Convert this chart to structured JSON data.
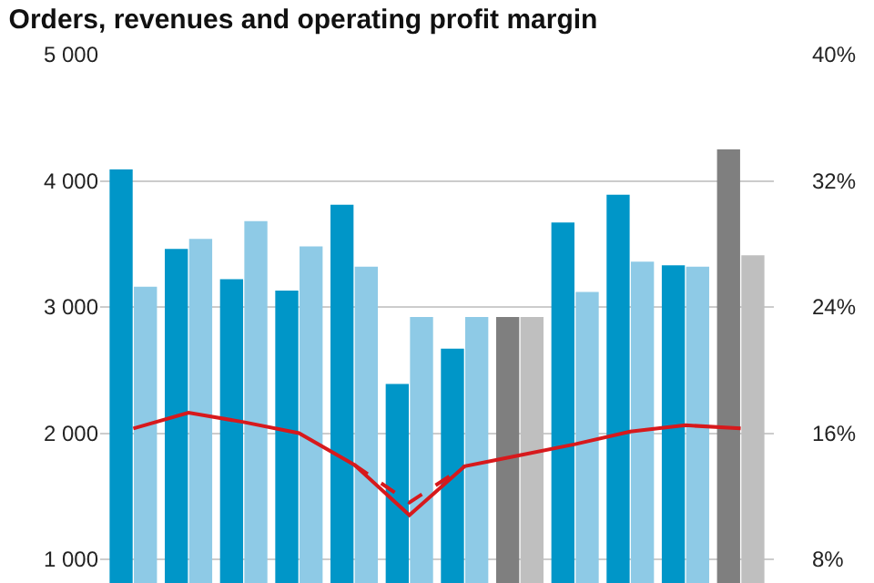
{
  "chart_data": {
    "type": "bar",
    "title": "Orders, revenues and operating profit margin",
    "categories": [
      null,
      null,
      null,
      null,
      null,
      null,
      null,
      null,
      null,
      null,
      null,
      null
    ],
    "series": [
      {
        "colors": [
          "#0096c8",
          "#0096c8",
          "#0096c8",
          "#0096c8",
          "#0096c8",
          "#0096c8",
          "#0096c8",
          "#7f7f7f",
          "#0096c8",
          "#0096c8",
          "#0096c8",
          "#7f7f7f"
        ],
        "values": [
          4090,
          3460,
          3220,
          3130,
          3810,
          2390,
          2670,
          2920,
          3670,
          3890,
          3330,
          4250
        ]
      },
      {
        "colors": [
          "#8ecae6",
          "#8ecae6",
          "#8ecae6",
          "#8ecae6",
          "#8ecae6",
          "#8ecae6",
          "#8ecae6",
          "#bfbfbf",
          "#8ecae6",
          "#8ecae6",
          "#8ecae6",
          "#bfbfbf"
        ],
        "values": [
          3160,
          3540,
          3680,
          3480,
          3320,
          2920,
          2920,
          2920,
          3120,
          3360,
          3320,
          3410
        ]
      },
      {
        "type": "line",
        "axis": "y2",
        "color": "#d7191c",
        "line_style": "solid",
        "values": [
          16.3,
          17.3,
          16.7,
          16.0,
          14.0,
          10.8,
          13.9,
          14.6,
          15.3,
          16.1,
          16.5,
          16.3
        ]
      },
      {
        "type": "line",
        "axis": "y2",
        "color": "#d7191c",
        "line_style": "dashed",
        "values": [
          null,
          null,
          null,
          null,
          14.0,
          11.6,
          13.9,
          null,
          null,
          null,
          null,
          null
        ]
      }
    ],
    "ylim": [
      812.5,
      5000
    ],
    "yticks": [
      {
        "value": 1000,
        "label": "1 000"
      },
      {
        "value": 2000,
        "label": "2 000"
      },
      {
        "value": 3000,
        "label": "3 000"
      },
      {
        "value": 4000,
        "label": "4 000"
      },
      {
        "value": 5000,
        "label": "5 000"
      }
    ],
    "y2lim": [
      6.5,
      40
    ],
    "y2ticks": [
      {
        "value": 8,
        "label": "8%"
      },
      {
        "value": 16,
        "label": "16%"
      },
      {
        "value": 24,
        "label": "24%"
      },
      {
        "value": 32,
        "label": "32%"
      },
      {
        "value": 40,
        "label": "40%"
      }
    ],
    "grid": "y",
    "marker": "none"
  }
}
